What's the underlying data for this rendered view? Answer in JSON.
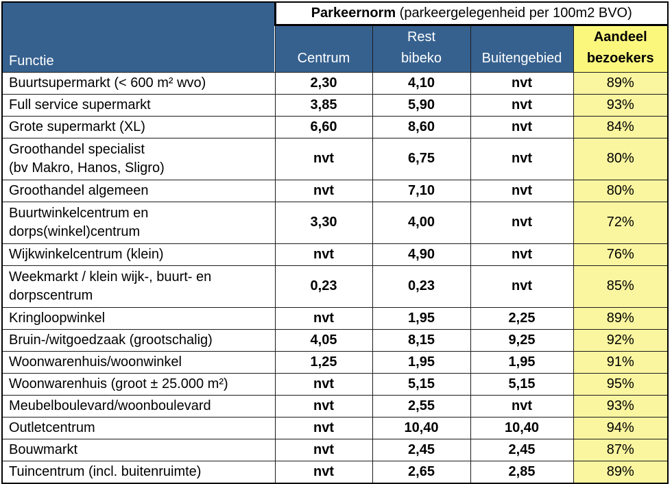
{
  "table": {
    "banner": {
      "title_bold": "Parkeernorm",
      "title_rest": " (parkeergelegenheid per 100m2 BVO)"
    },
    "columns": {
      "functie": "Functie",
      "centrum": "Centrum",
      "rest_line1": "Rest",
      "rest_line2": "bibeko",
      "buitengebied": "Buitengebied",
      "aandeel_line1": "Aandeel",
      "aandeel_line2": "bezoekers"
    }
  },
  "rows": [
    {
      "functie": "Buurtsupermarkt (< 600 m² wvo)",
      "centrum": "2,30",
      "rest_bibeko": "4,10",
      "buitengebied": "nvt",
      "aandeel_bezoekers": "89%"
    },
    {
      "functie": "Full service supermarkt",
      "centrum": "3,85",
      "rest_bibeko": "5,90",
      "buitengebied": "nvt",
      "aandeel_bezoekers": "93%"
    },
    {
      "functie": "Grote supermarkt (XL)",
      "centrum": "6,60",
      "rest_bibeko": "8,60",
      "buitengebied": "nvt",
      "aandeel_bezoekers": "84%"
    },
    {
      "functie": "Groothandel specialist\n(bv Makro, Hanos, Sligro)",
      "centrum": "nvt",
      "rest_bibeko": "6,75",
      "buitengebied": "nvt",
      "aandeel_bezoekers": "80%"
    },
    {
      "functie": "Groothandel algemeen",
      "centrum": "nvt",
      "rest_bibeko": "7,10",
      "buitengebied": "nvt",
      "aandeel_bezoekers": "80%"
    },
    {
      "functie": "Buurtwinkelcentrum en\ndorps(winkel)centrum",
      "centrum": "3,30",
      "rest_bibeko": "4,00",
      "buitengebied": "nvt",
      "aandeel_bezoekers": "72%"
    },
    {
      "functie": "Wijkwinkelcentrum (klein)",
      "centrum": "nvt",
      "rest_bibeko": "4,90",
      "buitengebied": "nvt",
      "aandeel_bezoekers": "76%"
    },
    {
      "functie": "Weekmarkt / klein wijk-, buurt- en\ndorpscentrum",
      "centrum": "0,23",
      "rest_bibeko": "0,23",
      "buitengebied": "nvt",
      "aandeel_bezoekers": "85%"
    },
    {
      "functie": "Kringloopwinkel",
      "centrum": "nvt",
      "rest_bibeko": "1,95",
      "buitengebied": "2,25",
      "aandeel_bezoekers": "89%"
    },
    {
      "functie": "Bruin-/witgoedzaak (grootschalig)",
      "centrum": "4,05",
      "rest_bibeko": "8,15",
      "buitengebied": "9,25",
      "aandeel_bezoekers": "92%"
    },
    {
      "functie": "Woonwarenhuis/woonwinkel",
      "centrum": "1,25",
      "rest_bibeko": "1,95",
      "buitengebied": "1,95",
      "aandeel_bezoekers": "91%"
    },
    {
      "functie": "Woonwarenhuis (groot ± 25.000 m²)",
      "centrum": "nvt",
      "rest_bibeko": "5,15",
      "buitengebied": "5,15",
      "aandeel_bezoekers": "95%"
    },
    {
      "functie": "Meubelboulevard/woonboulevard",
      "centrum": "nvt",
      "rest_bibeko": "2,55",
      "buitengebied": "nvt",
      "aandeel_bezoekers": "93%"
    },
    {
      "functie": "Outletcentrum",
      "centrum": "nvt",
      "rest_bibeko": "10,40",
      "buitengebied": "10,40",
      "aandeel_bezoekers": "94%"
    },
    {
      "functie": "Bouwmarkt",
      "centrum": "nvt",
      "rest_bibeko": "2,45",
      "buitengebied": "2,45",
      "aandeel_bezoekers": "87%"
    },
    {
      "functie": "Tuincentrum (incl. buitenruimte)",
      "centrum": "nvt",
      "rest_bibeko": "2,65",
      "buitengebied": "2,85",
      "aandeel_bezoekers": "89%"
    }
  ],
  "colors": {
    "header_blue": "#36618F",
    "header_yellow": "#FBF77D",
    "cell_yellow": "#FAF6A0",
    "border": "#1b1b1b"
  }
}
